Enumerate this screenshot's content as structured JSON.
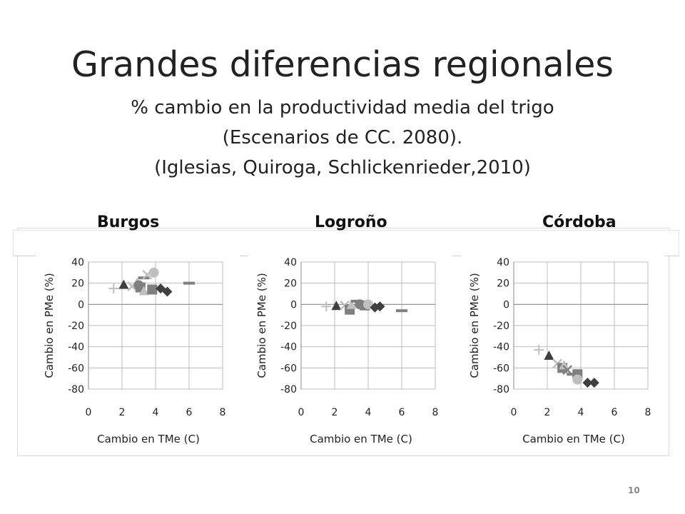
{
  "slide": {
    "title": "Grandes diferencias regionales",
    "subtitle_lines": [
      "% cambio en la productividad media del trigo",
      "(Escenarios de CC. 2080).",
      "(Iglesias, Quiroga, Schlickenrieder,2010)"
    ],
    "page_number": "10"
  },
  "colors": {
    "dark": "#3f3f3f",
    "mid": "#7f7f7f",
    "light": "#bfbfbf",
    "grid": "#bcbcbc"
  },
  "chart_data": [
    {
      "type": "scatter",
      "title": "Burgos",
      "xlabel": "Cambio en TMe (C)",
      "ylabel": "Cambio en PMe  (%)",
      "xlim": [
        0,
        8
      ],
      "ylim": [
        -80,
        40
      ],
      "xticks": [
        "0",
        "2",
        "4",
        "6",
        "8"
      ],
      "yticks": [
        "40",
        "20",
        "0",
        "-20",
        "-40",
        "-60",
        "-80"
      ],
      "grid": true,
      "points": [
        {
          "x": 1.5,
          "y": 15,
          "marker": "plus",
          "color": "light"
        },
        {
          "x": 2.1,
          "y": 18,
          "marker": "triangle",
          "color": "dark"
        },
        {
          "x": 2.6,
          "y": 17,
          "marker": "x",
          "color": "light"
        },
        {
          "x": 2.9,
          "y": 20,
          "marker": "triangle",
          "color": "light"
        },
        {
          "x": 3.0,
          "y": 18,
          "marker": "circle",
          "color": "mid"
        },
        {
          "x": 3.1,
          "y": 16,
          "marker": "square",
          "color": "mid"
        },
        {
          "x": 3.3,
          "y": 25,
          "marker": "dash",
          "color": "mid"
        },
        {
          "x": 3.5,
          "y": 28,
          "marker": "x",
          "color": "light"
        },
        {
          "x": 3.3,
          "y": 12,
          "marker": "triangle",
          "color": "light"
        },
        {
          "x": 3.8,
          "y": 14,
          "marker": "square",
          "color": "mid"
        },
        {
          "x": 3.9,
          "y": 30,
          "marker": "circle",
          "color": "light"
        },
        {
          "x": 4.3,
          "y": 15,
          "marker": "diamond",
          "color": "dark"
        },
        {
          "x": 4.7,
          "y": 12,
          "marker": "diamond",
          "color": "dark"
        },
        {
          "x": 6.0,
          "y": 20,
          "marker": "dash",
          "color": "mid"
        }
      ]
    },
    {
      "type": "scatter",
      "title": "Logroño",
      "xlabel": "Cambio en TMe (C)",
      "ylabel": "Cambio en PMe  (%)",
      "xlim": [
        0,
        8
      ],
      "ylim": [
        -80,
        40
      ],
      "xticks": [
        "0",
        "2",
        "4",
        "6",
        "8"
      ],
      "yticks": [
        "40",
        "20",
        "0",
        "-20",
        "-40",
        "-60",
        "-80"
      ],
      "grid": true,
      "points": [
        {
          "x": 1.5,
          "y": -2,
          "marker": "plus",
          "color": "light"
        },
        {
          "x": 2.1,
          "y": -2,
          "marker": "triangle",
          "color": "dark"
        },
        {
          "x": 2.6,
          "y": -1,
          "marker": "x",
          "color": "light"
        },
        {
          "x": 2.9,
          "y": -5,
          "marker": "square",
          "color": "mid"
        },
        {
          "x": 3.0,
          "y": -1,
          "marker": "triangle",
          "color": "light"
        },
        {
          "x": 3.3,
          "y": 3,
          "marker": "dash",
          "color": "mid"
        },
        {
          "x": 3.5,
          "y": 0,
          "marker": "circle",
          "color": "mid"
        },
        {
          "x": 3.8,
          "y": -1,
          "marker": "square",
          "color": "mid"
        },
        {
          "x": 4.0,
          "y": 0,
          "marker": "circle",
          "color": "light"
        },
        {
          "x": 4.4,
          "y": -3,
          "marker": "diamond",
          "color": "dark"
        },
        {
          "x": 4.7,
          "y": -2,
          "marker": "diamond",
          "color": "dark"
        },
        {
          "x": 6.0,
          "y": -6,
          "marker": "dash",
          "color": "mid"
        }
      ]
    },
    {
      "type": "scatter",
      "title": "Córdoba",
      "xlabel": "Cambio en TMe (C)",
      "ylabel": "Cambio en PMe  (%)",
      "xlim": [
        0,
        8
      ],
      "ylim": [
        -80,
        40
      ],
      "xticks": [
        "0",
        "2",
        "4",
        "6",
        "8"
      ],
      "yticks": [
        "40",
        "20",
        "0",
        "-20",
        "-40",
        "-60",
        "-80"
      ],
      "grid": true,
      "points": [
        {
          "x": 1.5,
          "y": -43,
          "marker": "plus",
          "color": "light"
        },
        {
          "x": 2.1,
          "y": -49,
          "marker": "triangle",
          "color": "dark"
        },
        {
          "x": 2.6,
          "y": -56,
          "marker": "x",
          "color": "light"
        },
        {
          "x": 2.9,
          "y": -60,
          "marker": "square",
          "color": "mid"
        },
        {
          "x": 3.0,
          "y": -58,
          "marker": "triangle",
          "color": "light"
        },
        {
          "x": 3.2,
          "y": -62,
          "marker": "x",
          "color": "mid"
        },
        {
          "x": 3.5,
          "y": -66,
          "marker": "dash",
          "color": "mid"
        },
        {
          "x": 3.8,
          "y": -66,
          "marker": "square",
          "color": "mid"
        },
        {
          "x": 3.8,
          "y": -71,
          "marker": "circle",
          "color": "light"
        },
        {
          "x": 4.4,
          "y": -74,
          "marker": "diamond",
          "color": "dark"
        },
        {
          "x": 4.8,
          "y": -74,
          "marker": "diamond",
          "color": "dark"
        }
      ]
    }
  ]
}
